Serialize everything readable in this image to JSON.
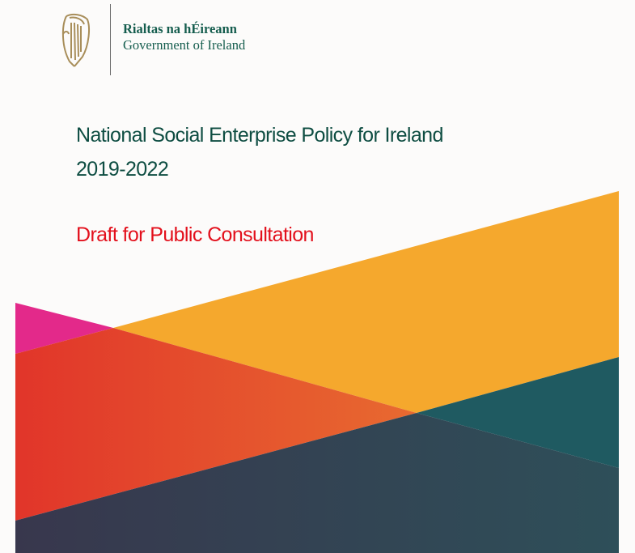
{
  "logo": {
    "irish_name": "Rialtas na hÉireann",
    "english_name": "Government of Ireland",
    "emblem": "harp-icon"
  },
  "document": {
    "title_line1": "National Social Enterprise Policy for Ireland",
    "title_line2": "2019-2022",
    "subtitle": "Draft for Public Consultation"
  },
  "colors": {
    "title": "#0e4d42",
    "subtitle": "#e3101c",
    "pink": "#e3298a",
    "orange": "#f5a82d",
    "red": "#e2372b",
    "teal": "#1f5a61",
    "navy": "#363a4f"
  }
}
